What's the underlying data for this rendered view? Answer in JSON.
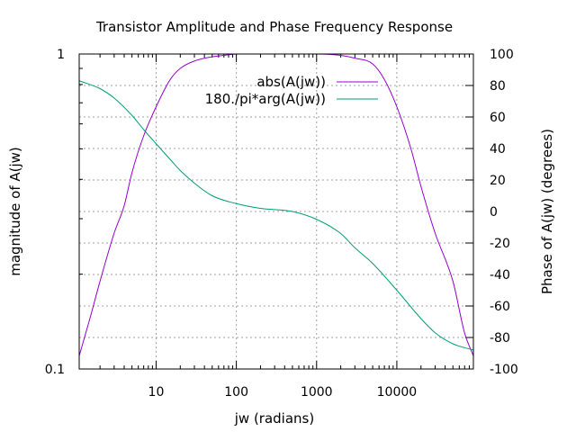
{
  "chart_data": {
    "type": "line",
    "title": "Transistor Amplitude and Phase Frequency Response",
    "xlabel": "jw (radians)",
    "ylabel": "magnitude of A(jw)",
    "y2label": "Phase of A(jw) (degrees)",
    "xscale": "log",
    "yscale": "log",
    "xlim": [
      1.1,
      90000
    ],
    "ylim": [
      0.1,
      1
    ],
    "y2lim": [
      -100,
      100
    ],
    "grid": true,
    "legend_position": "top-right",
    "x_ticks": [
      {
        "value": 10,
        "label": "10"
      },
      {
        "value": 100,
        "label": "100"
      },
      {
        "value": 1000,
        "label": "1000"
      },
      {
        "value": 10000,
        "label": "10000"
      }
    ],
    "y_ticks": [
      {
        "value": 1,
        "label": "1"
      },
      {
        "value": 0.1,
        "label": "0.1"
      }
    ],
    "y2_ticks": [
      {
        "value": 100,
        "label": "100"
      },
      {
        "value": 80,
        "label": "80"
      },
      {
        "value": 60,
        "label": "60"
      },
      {
        "value": 40,
        "label": "40"
      },
      {
        "value": 20,
        "label": "20"
      },
      {
        "value": 0,
        "label": "0"
      },
      {
        "value": -20,
        "label": "-20"
      },
      {
        "value": -40,
        "label": "-40"
      },
      {
        "value": -60,
        "label": "-60"
      },
      {
        "value": -80,
        "label": "-80"
      },
      {
        "value": -100,
        "label": "-100"
      }
    ],
    "series": [
      {
        "name": "abs(A(jw))",
        "color": "#9400d3",
        "axis": "y",
        "x": [
          1.1,
          1.5,
          2,
          3,
          4,
          5,
          7,
          10,
          15,
          20,
          30,
          50,
          70,
          100,
          200,
          500,
          1000,
          2000,
          3000,
          5000,
          7000,
          10000,
          15000,
          20000,
          30000,
          50000,
          70000,
          90000
        ],
        "y": [
          0.11,
          0.145,
          0.19,
          0.27,
          0.33,
          0.42,
          0.55,
          0.68,
          0.83,
          0.9,
          0.95,
          0.98,
          0.99,
          1.0,
          1.0,
          1.0,
          1.0,
          0.99,
          0.97,
          0.93,
          0.83,
          0.68,
          0.5,
          0.38,
          0.27,
          0.19,
          0.13,
          0.11
        ]
      },
      {
        "name": "180./pi*arg(A(jw))",
        "color": "#009e73",
        "axis": "y2",
        "x": [
          1.1,
          2,
          3,
          5,
          7,
          10,
          15,
          20,
          30,
          50,
          100,
          200,
          500,
          1000,
          2000,
          3000,
          5000,
          10000,
          20000,
          30000,
          50000,
          90000
        ],
        "y": [
          83,
          78,
          72,
          61,
          52,
          43,
          33,
          26,
          18,
          10,
          5,
          2,
          0,
          -5,
          -14,
          -23,
          -33,
          -50,
          -68,
          -77,
          -84,
          -88
        ]
      }
    ]
  }
}
